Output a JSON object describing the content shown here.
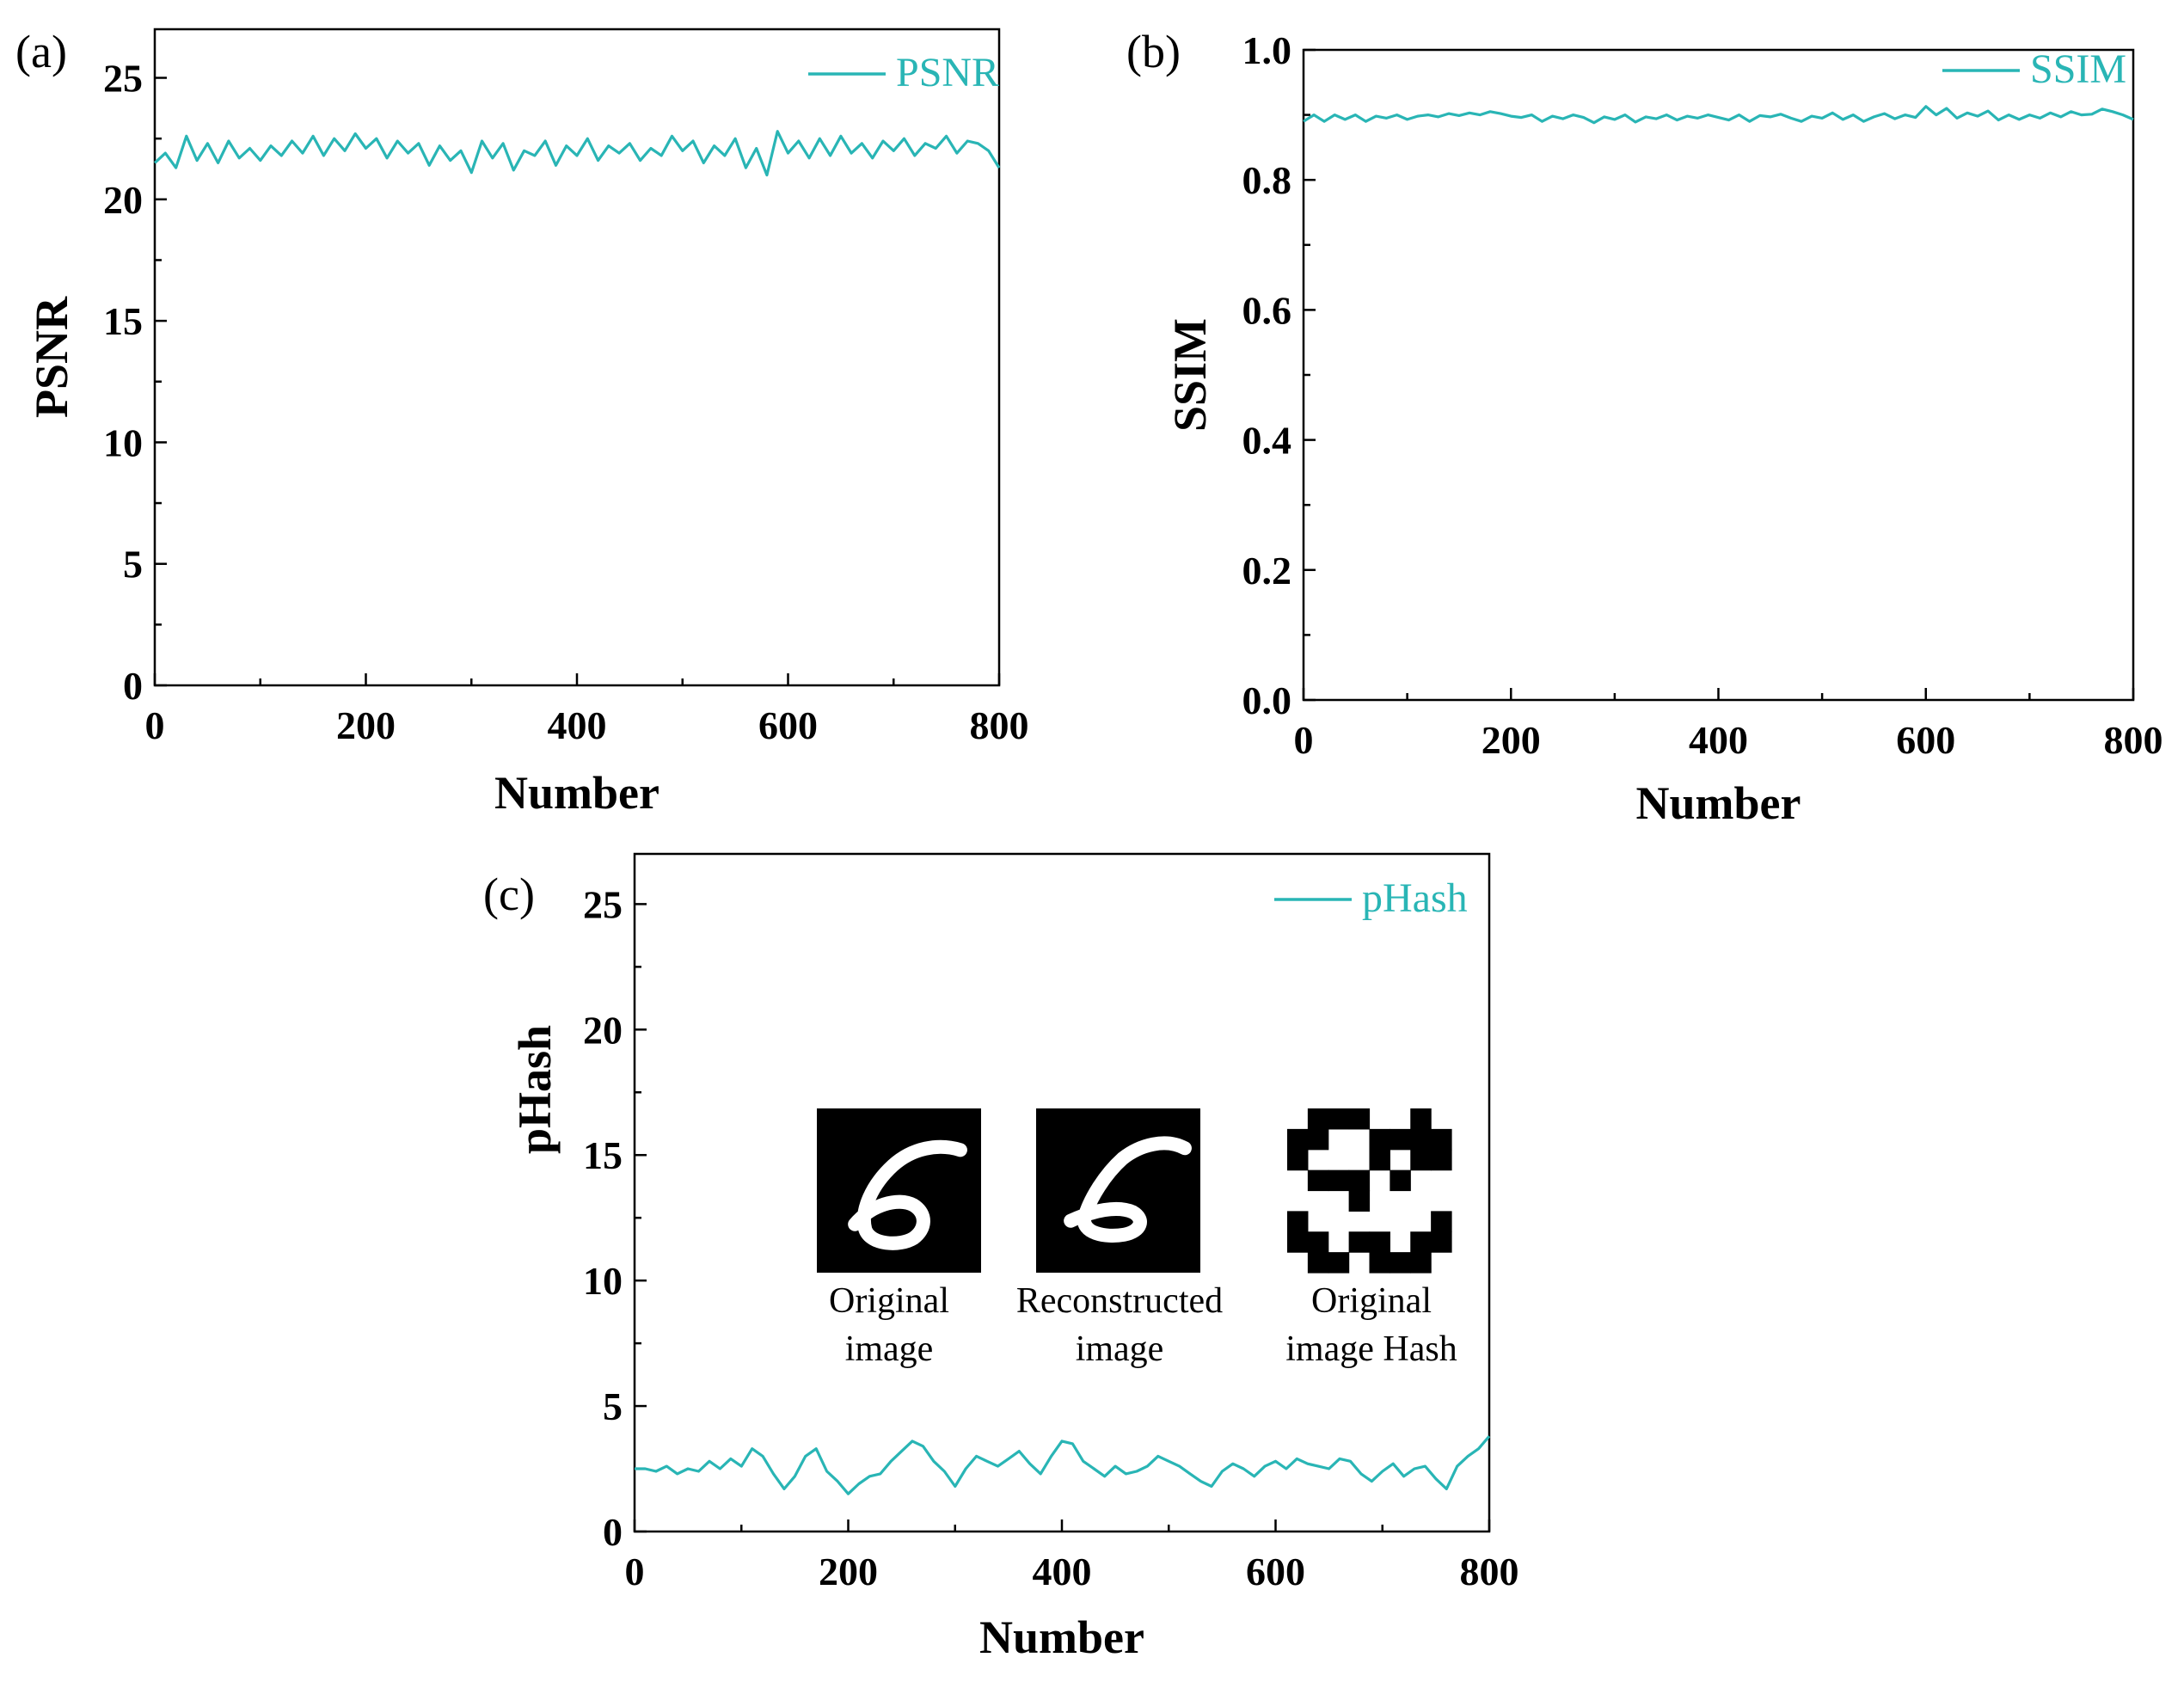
{
  "figure": {
    "series_color": "#29b5b5",
    "inset_captions": [
      {
        "line1": "Original",
        "line2": "image"
      },
      {
        "line1": "Reconstructed",
        "line2": "image"
      },
      {
        "line1": "Original",
        "line2": "image Hash"
      }
    ]
  },
  "chart_data": [
    {
      "panel": "(a)",
      "type": "line",
      "title": "",
      "xlabel": "Number",
      "ylabel": "PSNR",
      "xlim": [
        0,
        800
      ],
      "ylim": [
        0,
        27
      ],
      "xticks": [
        0,
        200,
        400,
        600,
        800
      ],
      "yticks": [
        0,
        5,
        10,
        15,
        20,
        25
      ],
      "legend": {
        "label": "PSNR",
        "placement": "top-right"
      },
      "x": [
        0,
        10,
        20,
        30,
        40,
        50,
        60,
        70,
        80,
        90,
        100,
        110,
        120,
        130,
        140,
        150,
        160,
        170,
        180,
        190,
        200,
        210,
        220,
        230,
        240,
        250,
        260,
        270,
        280,
        290,
        300,
        310,
        320,
        330,
        340,
        350,
        360,
        370,
        380,
        390,
        400,
        410,
        420,
        430,
        440,
        450,
        460,
        470,
        480,
        490,
        500,
        510,
        520,
        530,
        540,
        550,
        560,
        570,
        580,
        590,
        600,
        610,
        620,
        630,
        640,
        650,
        660,
        670,
        680,
        690,
        700,
        710,
        720,
        730,
        740,
        750,
        760,
        770,
        780,
        790,
        800
      ],
      "series": [
        {
          "name": "PSNR",
          "values": [
            21.5,
            21.9,
            21.3,
            22.6,
            21.6,
            22.3,
            21.5,
            22.4,
            21.7,
            22.1,
            21.6,
            22.2,
            21.8,
            22.4,
            21.9,
            22.6,
            21.8,
            22.5,
            22.0,
            22.7,
            22.1,
            22.5,
            21.7,
            22.4,
            21.9,
            22.3,
            21.4,
            22.2,
            21.6,
            22.0,
            21.1,
            22.4,
            21.7,
            22.3,
            21.2,
            22.0,
            21.8,
            22.4,
            21.4,
            22.2,
            21.8,
            22.5,
            21.6,
            22.2,
            21.9,
            22.3,
            21.6,
            22.1,
            21.8,
            22.6,
            22.0,
            22.4,
            21.5,
            22.2,
            21.8,
            22.5,
            21.3,
            22.1,
            21.0,
            22.8,
            21.9,
            22.4,
            21.7,
            22.5,
            21.8,
            22.6,
            21.9,
            22.3,
            21.7,
            22.4,
            22.0,
            22.5,
            21.8,
            22.3,
            22.1,
            22.6,
            21.9,
            22.4,
            22.3,
            22.0,
            21.3
          ]
        }
      ]
    },
    {
      "panel": "(b)",
      "type": "line",
      "title": "",
      "xlabel": "Number",
      "ylabel": "SSIM",
      "xlim": [
        0,
        800
      ],
      "ylim": [
        0.0,
        1.0
      ],
      "xticks": [
        0,
        200,
        400,
        600,
        800
      ],
      "yticks": [
        0.0,
        0.2,
        0.4,
        0.6,
        0.8,
        1.0
      ],
      "tick_format": "0.1",
      "legend": {
        "label": "SSIM",
        "placement": "top-right"
      },
      "x": [
        0,
        10,
        20,
        30,
        40,
        50,
        60,
        70,
        80,
        90,
        100,
        110,
        120,
        130,
        140,
        150,
        160,
        170,
        180,
        190,
        200,
        210,
        220,
        230,
        240,
        250,
        260,
        270,
        280,
        290,
        300,
        310,
        320,
        330,
        340,
        350,
        360,
        370,
        380,
        390,
        400,
        410,
        420,
        430,
        440,
        450,
        460,
        470,
        480,
        490,
        500,
        510,
        520,
        530,
        540,
        550,
        560,
        570,
        580,
        590,
        600,
        610,
        620,
        630,
        640,
        650,
        660,
        670,
        680,
        690,
        700,
        710,
        720,
        730,
        740,
        750,
        760,
        770,
        780,
        790,
        800
      ],
      "series": [
        {
          "name": "SSIM",
          "values": [
            0.89,
            0.9,
            0.89,
            0.9,
            0.893,
            0.9,
            0.89,
            0.898,
            0.895,
            0.9,
            0.893,
            0.898,
            0.9,
            0.897,
            0.902,
            0.899,
            0.903,
            0.9,
            0.905,
            0.902,
            0.898,
            0.896,
            0.9,
            0.89,
            0.898,
            0.894,
            0.9,
            0.896,
            0.888,
            0.897,
            0.893,
            0.9,
            0.889,
            0.897,
            0.894,
            0.9,
            0.892,
            0.898,
            0.895,
            0.9,
            0.896,
            0.892,
            0.9,
            0.89,
            0.899,
            0.897,
            0.901,
            0.895,
            0.89,
            0.898,
            0.895,
            0.903,
            0.893,
            0.9,
            0.89,
            0.897,
            0.902,
            0.894,
            0.9,
            0.896,
            0.913,
            0.9,
            0.91,
            0.895,
            0.903,
            0.898,
            0.906,
            0.892,
            0.9,
            0.893,
            0.9,
            0.895,
            0.903,
            0.897,
            0.905,
            0.9,
            0.901,
            0.909,
            0.905,
            0.9,
            0.893
          ]
        }
      ]
    },
    {
      "panel": "(c)",
      "type": "line",
      "title": "",
      "xlabel": "Number",
      "ylabel": "pHash",
      "xlim": [
        0,
        800
      ],
      "ylim": [
        0,
        27
      ],
      "xticks": [
        0,
        200,
        400,
        600,
        800
      ],
      "yticks": [
        0,
        5,
        10,
        15,
        20,
        25
      ],
      "legend": {
        "label": "pHash",
        "placement": "top-right"
      },
      "x": [
        0,
        10,
        20,
        30,
        40,
        50,
        60,
        70,
        80,
        90,
        100,
        110,
        120,
        130,
        140,
        150,
        160,
        170,
        180,
        190,
        200,
        210,
        220,
        230,
        240,
        250,
        260,
        270,
        280,
        290,
        300,
        310,
        320,
        330,
        340,
        350,
        360,
        370,
        380,
        390,
        400,
        410,
        420,
        430,
        440,
        450,
        460,
        470,
        480,
        490,
        500,
        510,
        520,
        530,
        540,
        550,
        560,
        570,
        580,
        590,
        600,
        610,
        620,
        630,
        640,
        650,
        660,
        670,
        680,
        690,
        700,
        710,
        720,
        730,
        740,
        750,
        760,
        770,
        780,
        790,
        800
      ],
      "series": [
        {
          "name": "pHash",
          "values": [
            2.5,
            2.5,
            2.4,
            2.6,
            2.3,
            2.5,
            2.4,
            2.8,
            2.5,
            2.9,
            2.6,
            3.3,
            3.0,
            2.3,
            1.7,
            2.2,
            3.0,
            3.3,
            2.4,
            2.0,
            1.5,
            1.9,
            2.2,
            2.3,
            2.8,
            3.2,
            3.6,
            3.4,
            2.8,
            2.4,
            1.8,
            2.5,
            3.0,
            2.8,
            2.6,
            2.9,
            3.2,
            2.7,
            2.3,
            3.0,
            3.6,
            3.5,
            2.8,
            2.5,
            2.2,
            2.6,
            2.3,
            2.4,
            2.6,
            3.0,
            2.8,
            2.6,
            2.3,
            2.0,
            1.8,
            2.4,
            2.7,
            2.5,
            2.2,
            2.6,
            2.8,
            2.5,
            2.9,
            2.7,
            2.6,
            2.5,
            2.9,
            2.8,
            2.3,
            2.0,
            2.4,
            2.7,
            2.2,
            2.5,
            2.6,
            2.1,
            1.7,
            2.6,
            3.0,
            3.3,
            3.8
          ]
        }
      ]
    }
  ]
}
